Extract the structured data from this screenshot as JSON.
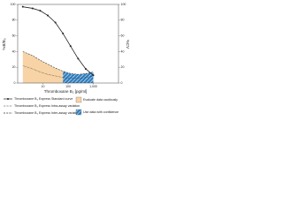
{
  "chart_data": {
    "type": "line",
    "x_label": "Thromboxane B₂ [pg/ml]",
    "y_label": "%B/B₀",
    "y2_label": "%CV",
    "x": [
      1.6,
      3.9,
      7.8,
      15.6,
      31.3,
      62.5,
      125,
      250,
      500,
      1000
    ],
    "xscale": "log",
    "xlim": [
      1,
      10000
    ],
    "xticks": [
      10,
      100,
      {
        "value": 1000,
        "label": "1,000"
      }
    ],
    "ylim": [
      0,
      100
    ],
    "yticks": [
      0,
      20,
      40,
      60,
      80,
      100
    ],
    "y2lim": [
      0,
      100
    ],
    "y2ticks": [
      0,
      20,
      40,
      60,
      80,
      100
    ],
    "series": [
      {
        "name": "Thromboxane B₂ Express Standard curve",
        "color": "#222222",
        "style": "solid",
        "marker": true,
        "axis": "y",
        "values": [
          97,
          95,
          92,
          86,
          77,
          63,
          47,
          31,
          18,
          10
        ]
      },
      {
        "name": "Thromboxane B₂ Express Intra-assay variation",
        "color": "#333333",
        "style": "dotted",
        "axis": "y2",
        "values": [
          22,
          18,
          14,
          11,
          9,
          7,
          6,
          6,
          7,
          9
        ]
      },
      {
        "name": "Thromboxane B₂ Express Inter-assay variation",
        "color": "#333333",
        "style": "dashed",
        "axis": "y2",
        "values": [
          40,
          35,
          29,
          24,
          19,
          15,
          12,
          11,
          12,
          14
        ]
      }
    ],
    "regions": [
      {
        "label": "Evaluate data cautiously",
        "from": 1.6,
        "to": 62.5,
        "color": "#f7d3a6"
      },
      {
        "label": "Use data with confidence",
        "from": 62.5,
        "to": 1000,
        "color": "#2f7fbf",
        "hatched": true
      }
    ]
  }
}
